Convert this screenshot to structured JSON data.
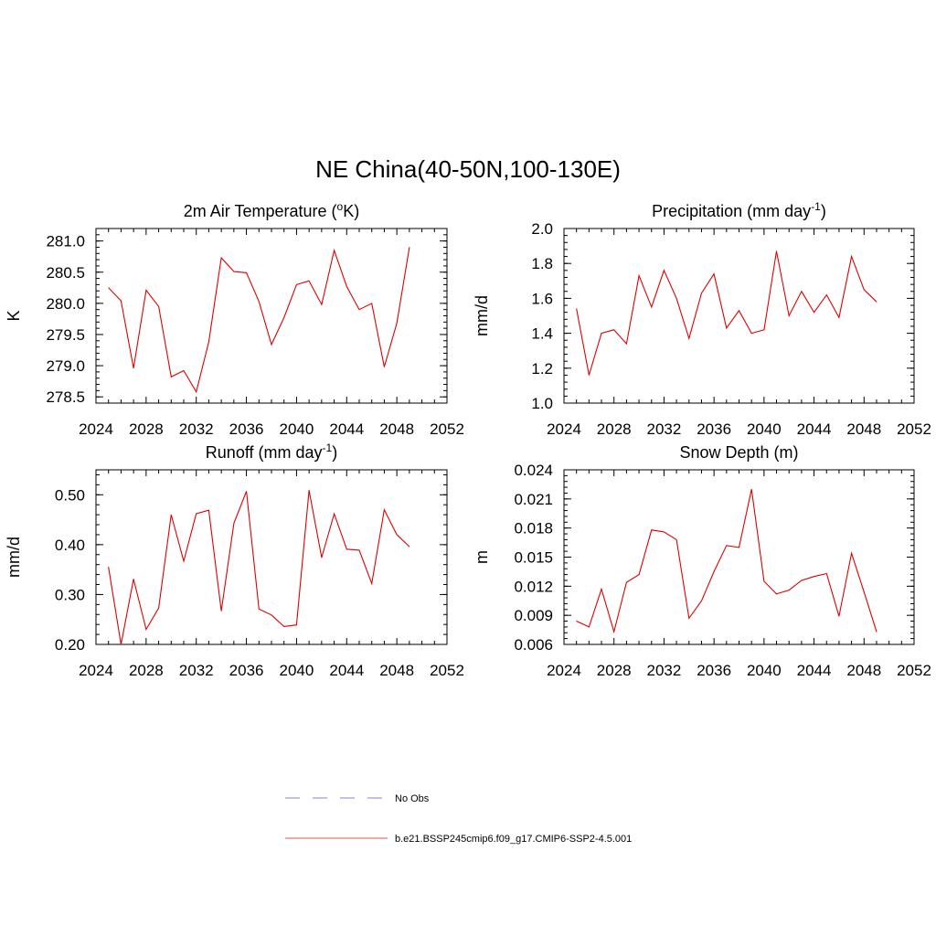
{
  "figure": {
    "title": "NE China(40-50N,100-130E)"
  },
  "chart_data": [
    {
      "type": "line",
      "title": "2m Air Temperature (",
      "title_sup": "o",
      "title_post": "K)",
      "ylabel": "K",
      "xlim": [
        2024,
        2052
      ],
      "ylim": [
        278.4,
        281.2
      ],
      "xticks": [
        2024,
        2028,
        2032,
        2036,
        2040,
        2044,
        2048,
        2052
      ],
      "yticks": [
        "278.5",
        "279.0",
        "279.5",
        "280.0",
        "280.5",
        "281.0"
      ],
      "x": [
        2025,
        2026,
        2027,
        2028,
        2029,
        2030,
        2031,
        2032,
        2033,
        2034,
        2035,
        2036,
        2037,
        2038,
        2039,
        2040,
        2041,
        2042,
        2043,
        2044,
        2045,
        2046,
        2047,
        2048,
        2049
      ],
      "series": [
        {
          "color": "#e00000",
          "values": [
            280.25,
            280.04,
            278.96,
            280.21,
            279.95,
            278.82,
            278.92,
            278.58,
            279.38,
            280.73,
            280.51,
            280.49,
            280.03,
            279.34,
            279.77,
            280.3,
            280.36,
            279.98,
            280.85,
            280.27,
            279.9,
            280.0,
            278.98,
            279.68,
            280.9
          ]
        }
      ]
    },
    {
      "type": "line",
      "title": "Precipitation (mm day",
      "title_sup": "-1",
      "title_post": ")",
      "ylabel": "mm/d",
      "xlim": [
        2024,
        2052
      ],
      "ylim": [
        1.0,
        2.0
      ],
      "xticks": [
        2024,
        2028,
        2032,
        2036,
        2040,
        2044,
        2048,
        2052
      ],
      "yticks": [
        "1.0",
        "1.2",
        "1.4",
        "1.6",
        "1.8",
        "2.0"
      ],
      "x": [
        2025,
        2026,
        2027,
        2028,
        2029,
        2030,
        2031,
        2032,
        2033,
        2034,
        2035,
        2036,
        2037,
        2038,
        2039,
        2040,
        2041,
        2042,
        2043,
        2044,
        2045,
        2046,
        2047,
        2048,
        2049
      ],
      "series": [
        {
          "color": "#e00000",
          "values": [
            1.54,
            1.16,
            1.4,
            1.42,
            1.34,
            1.73,
            1.55,
            1.76,
            1.6,
            1.37,
            1.63,
            1.74,
            1.43,
            1.53,
            1.4,
            1.42,
            1.87,
            1.5,
            1.64,
            1.52,
            1.62,
            1.49,
            1.84,
            1.65,
            1.58
          ]
        }
      ]
    },
    {
      "type": "line",
      "title": "Runoff (mm day",
      "title_sup": "-1",
      "title_post": ")",
      "ylabel": "mm/d",
      "xlim": [
        2024,
        2052
      ],
      "ylim": [
        0.2,
        0.55
      ],
      "xticks": [
        2024,
        2028,
        2032,
        2036,
        2040,
        2044,
        2048,
        2052
      ],
      "yticks": [
        "0.20",
        "0.30",
        "0.40",
        "0.50"
      ],
      "x": [
        2025,
        2026,
        2027,
        2028,
        2029,
        2030,
        2031,
        2032,
        2033,
        2034,
        2035,
        2036,
        2037,
        2038,
        2039,
        2040,
        2041,
        2042,
        2043,
        2044,
        2045,
        2046,
        2047,
        2048,
        2049
      ],
      "series": [
        {
          "color": "#e00000",
          "values": [
            0.355,
            0.2,
            0.331,
            0.23,
            0.273,
            0.46,
            0.367,
            0.462,
            0.469,
            0.267,
            0.443,
            0.507,
            0.271,
            0.259,
            0.236,
            0.239,
            0.509,
            0.374,
            0.462,
            0.391,
            0.389,
            0.322,
            0.47,
            0.42,
            0.396
          ]
        }
      ]
    },
    {
      "type": "line",
      "title": "Snow Depth (m)",
      "title_sup": "",
      "title_post": "",
      "ylabel": "m",
      "xlim": [
        2024,
        2052
      ],
      "ylim": [
        0.006,
        0.024
      ],
      "xticks": [
        2024,
        2028,
        2032,
        2036,
        2040,
        2044,
        2048,
        2052
      ],
      "yticks": [
        "0.006",
        "0.009",
        "0.012",
        "0.015",
        "0.018",
        "0.021",
        "0.024"
      ],
      "x": [
        2025,
        2026,
        2027,
        2028,
        2029,
        2030,
        2031,
        2032,
        2033,
        2034,
        2035,
        2036,
        2037,
        2038,
        2039,
        2040,
        2041,
        2042,
        2043,
        2044,
        2045,
        2046,
        2047,
        2048,
        2049
      ],
      "series": [
        {
          "color": "#e00000",
          "values": [
            0.0084,
            0.0078,
            0.0117,
            0.0073,
            0.0124,
            0.0132,
            0.0178,
            0.0176,
            0.0168,
            0.0087,
            0.0105,
            0.0135,
            0.0162,
            0.016,
            0.022,
            0.0125,
            0.0112,
            0.0116,
            0.0126,
            0.013,
            0.0133,
            0.0089,
            0.0154,
            0.0114,
            0.0073
          ]
        }
      ]
    }
  ],
  "legend": {
    "items": [
      {
        "label": "No Obs",
        "color": "#9999ee",
        "dash": true
      },
      {
        "label": "b.e21.BSSP245cmip6.f09_g17.CMIP6-SSP2-4.5.001",
        "color": "#ee7777",
        "dash": false
      }
    ]
  }
}
